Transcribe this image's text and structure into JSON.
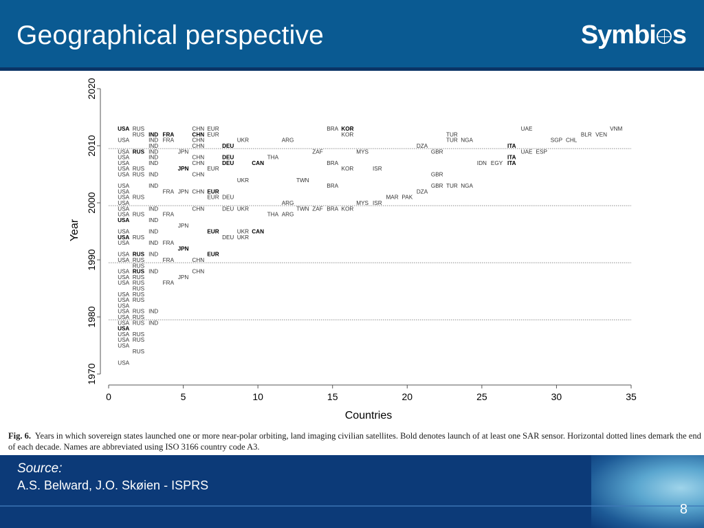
{
  "header": {
    "title": "Geographical perspective",
    "logo_part1": "Symbi",
    "logo_part2": "s"
  },
  "colors": {
    "header_bg": "#0a5a92",
    "footer_bg": "#0c3a78",
    "text": "#000000"
  },
  "chart_data": {
    "type": "scatter",
    "title": "",
    "xlabel": "Countries",
    "ylabel": "Year",
    "xlim": [
      0,
      35
    ],
    "ylim": [
      1970,
      2020
    ],
    "xticks": [
      0,
      5,
      10,
      15,
      20,
      25,
      30,
      35
    ],
    "yticks": [
      1970,
      1980,
      1990,
      2000,
      2010,
      2020
    ],
    "decade_lines": [
      1979.5,
      1989.5,
      1999.5,
      2009.5
    ],
    "grid": false,
    "points": [
      {
        "x": 1,
        "y": 1972,
        "label": "USA",
        "sar": false
      },
      {
        "x": 2,
        "y": 1974,
        "label": "RUS",
        "sar": false
      },
      {
        "x": 1,
        "y": 1975,
        "label": "USA",
        "sar": false
      },
      {
        "x": 1,
        "y": 1976,
        "label": "USA",
        "sar": false
      },
      {
        "x": 2,
        "y": 1976,
        "label": "RUS",
        "sar": false
      },
      {
        "x": 1,
        "y": 1977,
        "label": "USA",
        "sar": false
      },
      {
        "x": 2,
        "y": 1977,
        "label": "RUS",
        "sar": false
      },
      {
        "x": 1,
        "y": 1978,
        "label": "USA",
        "sar": true
      },
      {
        "x": 1,
        "y": 1979,
        "label": "USA",
        "sar": false
      },
      {
        "x": 2,
        "y": 1979,
        "label": "RUS",
        "sar": false
      },
      {
        "x": 3,
        "y": 1979,
        "label": "IND",
        "sar": false
      },
      {
        "x": 1,
        "y": 1980,
        "label": "USA",
        "sar": false
      },
      {
        "x": 2,
        "y": 1980,
        "label": "RUS",
        "sar": false
      },
      {
        "x": 1,
        "y": 1981,
        "label": "USA",
        "sar": false
      },
      {
        "x": 2,
        "y": 1981,
        "label": "RUS",
        "sar": false
      },
      {
        "x": 3,
        "y": 1981,
        "label": "IND",
        "sar": false
      },
      {
        "x": 1,
        "y": 1982,
        "label": "USA",
        "sar": false
      },
      {
        "x": 1,
        "y": 1983,
        "label": "USA",
        "sar": false
      },
      {
        "x": 2,
        "y": 1983,
        "label": "RUS",
        "sar": false
      },
      {
        "x": 1,
        "y": 1984,
        "label": "USA",
        "sar": false
      },
      {
        "x": 2,
        "y": 1984,
        "label": "RUS",
        "sar": false
      },
      {
        "x": 2,
        "y": 1985,
        "label": "RUS",
        "sar": false
      },
      {
        "x": 1,
        "y": 1986,
        "label": "USA",
        "sar": false
      },
      {
        "x": 2,
        "y": 1986,
        "label": "RUS",
        "sar": false
      },
      {
        "x": 4,
        "y": 1986,
        "label": "FRA",
        "sar": false
      },
      {
        "x": 1,
        "y": 1987,
        "label": "USA",
        "sar": false
      },
      {
        "x": 2,
        "y": 1987,
        "label": "RUS",
        "sar": false
      },
      {
        "x": 5,
        "y": 1987,
        "label": "JPN",
        "sar": false
      },
      {
        "x": 1,
        "y": 1988,
        "label": "USA",
        "sar": false
      },
      {
        "x": 2,
        "y": 1988,
        "label": "RUS",
        "sar": true
      },
      {
        "x": 3,
        "y": 1988,
        "label": "IND",
        "sar": false
      },
      {
        "x": 6,
        "y": 1988,
        "label": "CHN",
        "sar": false
      },
      {
        "x": 2,
        "y": 1989,
        "label": "RUS",
        "sar": false
      },
      {
        "x": 1,
        "y": 1990,
        "label": "USA",
        "sar": false
      },
      {
        "x": 2,
        "y": 1990,
        "label": "RUS",
        "sar": false
      },
      {
        "x": 4,
        "y": 1990,
        "label": "FRA",
        "sar": false
      },
      {
        "x": 6,
        "y": 1990,
        "label": "CHN",
        "sar": false
      },
      {
        "x": 1,
        "y": 1991,
        "label": "USA",
        "sar": false
      },
      {
        "x": 2,
        "y": 1991,
        "label": "RUS",
        "sar": true
      },
      {
        "x": 3,
        "y": 1991,
        "label": "IND",
        "sar": false
      },
      {
        "x": 7,
        "y": 1991,
        "label": "EUR",
        "sar": true
      },
      {
        "x": 5,
        "y": 1992,
        "label": "JPN",
        "sar": true
      },
      {
        "x": 1,
        "y": 1993,
        "label": "USA",
        "sar": false
      },
      {
        "x": 3,
        "y": 1993,
        "label": "IND",
        "sar": false
      },
      {
        "x": 4,
        "y": 1993,
        "label": "FRA",
        "sar": false
      },
      {
        "x": 1,
        "y": 1994,
        "label": "USA",
        "sar": true
      },
      {
        "x": 2,
        "y": 1994,
        "label": "RUS",
        "sar": false
      },
      {
        "x": 8,
        "y": 1994,
        "label": "DEU",
        "sar": false
      },
      {
        "x": 9,
        "y": 1994,
        "label": "UKR",
        "sar": false
      },
      {
        "x": 1,
        "y": 1995,
        "label": "USA",
        "sar": false
      },
      {
        "x": 3,
        "y": 1995,
        "label": "IND",
        "sar": false
      },
      {
        "x": 7,
        "y": 1995,
        "label": "EUR",
        "sar": true
      },
      {
        "x": 9,
        "y": 1995,
        "label": "UKR",
        "sar": false
      },
      {
        "x": 10,
        "y": 1995,
        "label": "CAN",
        "sar": true
      },
      {
        "x": 5,
        "y": 1996,
        "label": "JPN",
        "sar": false
      },
      {
        "x": 1,
        "y": 1997,
        "label": "USA",
        "sar": true
      },
      {
        "x": 3,
        "y": 1997,
        "label": "IND",
        "sar": false
      },
      {
        "x": 1,
        "y": 1998,
        "label": "USA",
        "sar": false
      },
      {
        "x": 2,
        "y": 1998,
        "label": "RUS",
        "sar": false
      },
      {
        "x": 4,
        "y": 1998,
        "label": "FRA",
        "sar": false
      },
      {
        "x": 11,
        "y": 1998,
        "label": "THA",
        "sar": false
      },
      {
        "x": 12,
        "y": 1998,
        "label": "ARG",
        "sar": false
      },
      {
        "x": 1,
        "y": 1999,
        "label": "USA",
        "sar": false
      },
      {
        "x": 3,
        "y": 1999,
        "label": "IND",
        "sar": false
      },
      {
        "x": 6,
        "y": 1999,
        "label": "CHN",
        "sar": false
      },
      {
        "x": 8,
        "y": 1999,
        "label": "DEU",
        "sar": false
      },
      {
        "x": 9,
        "y": 1999,
        "label": "UKR",
        "sar": false
      },
      {
        "x": 13,
        "y": 1999,
        "label": "TWN",
        "sar": false
      },
      {
        "x": 14,
        "y": 1999,
        "label": "ZAF",
        "sar": false
      },
      {
        "x": 15,
        "y": 1999,
        "label": "BRA",
        "sar": false
      },
      {
        "x": 16,
        "y": 1999,
        "label": "KOR",
        "sar": false
      },
      {
        "x": 1,
        "y": 2000,
        "label": "USA",
        "sar": false
      },
      {
        "x": 12,
        "y": 2000,
        "label": "ARG",
        "sar": false
      },
      {
        "x": 17,
        "y": 2000,
        "label": "MYS",
        "sar": false
      },
      {
        "x": 18,
        "y": 2000,
        "label": "ISR",
        "sar": false
      },
      {
        "x": 1,
        "y": 2001,
        "label": "USA",
        "sar": false
      },
      {
        "x": 2,
        "y": 2001,
        "label": "RUS",
        "sar": false
      },
      {
        "x": 7,
        "y": 2001,
        "label": "EUR",
        "sar": false
      },
      {
        "x": 8,
        "y": 2001,
        "label": "DEU",
        "sar": false
      },
      {
        "x": 19,
        "y": 2001,
        "label": "MAR",
        "sar": false
      },
      {
        "x": 20,
        "y": 2001,
        "label": "PAK",
        "sar": false
      },
      {
        "x": 1,
        "y": 2002,
        "label": "USA",
        "sar": false
      },
      {
        "x": 4,
        "y": 2002,
        "label": "FRA",
        "sar": false
      },
      {
        "x": 5,
        "y": 2002,
        "label": "JPN",
        "sar": false
      },
      {
        "x": 6,
        "y": 2002,
        "label": "CHN",
        "sar": false
      },
      {
        "x": 7,
        "y": 2002,
        "label": "EUR",
        "sar": true
      },
      {
        "x": 21,
        "y": 2002,
        "label": "DZA",
        "sar": false
      },
      {
        "x": 1,
        "y": 2003,
        "label": "USA",
        "sar": false
      },
      {
        "x": 3,
        "y": 2003,
        "label": "IND",
        "sar": false
      },
      {
        "x": 15,
        "y": 2003,
        "label": "BRA",
        "sar": false
      },
      {
        "x": 22,
        "y": 2003,
        "label": "GBR",
        "sar": false
      },
      {
        "x": 23,
        "y": 2003,
        "label": "TUR",
        "sar": false
      },
      {
        "x": 24,
        "y": 2003,
        "label": "NGA",
        "sar": false
      },
      {
        "x": 9,
        "y": 2004,
        "label": "UKR",
        "sar": false
      },
      {
        "x": 13,
        "y": 2004,
        "label": "TWN",
        "sar": false
      },
      {
        "x": 1,
        "y": 2005,
        "label": "USA",
        "sar": false
      },
      {
        "x": 2,
        "y": 2005,
        "label": "RUS",
        "sar": false
      },
      {
        "x": 3,
        "y": 2005,
        "label": "IND",
        "sar": false
      },
      {
        "x": 6,
        "y": 2005,
        "label": "CHN",
        "sar": false
      },
      {
        "x": 22,
        "y": 2005,
        "label": "GBR",
        "sar": false
      },
      {
        "x": 1,
        "y": 2006,
        "label": "USA",
        "sar": false
      },
      {
        "x": 2,
        "y": 2006,
        "label": "RUS",
        "sar": false
      },
      {
        "x": 5,
        "y": 2006,
        "label": "JPN",
        "sar": true
      },
      {
        "x": 7,
        "y": 2006,
        "label": "EUR",
        "sar": false
      },
      {
        "x": 16,
        "y": 2006,
        "label": "KOR",
        "sar": false
      },
      {
        "x": 18,
        "y": 2006,
        "label": "ISR",
        "sar": false
      },
      {
        "x": 1,
        "y": 2007,
        "label": "USA",
        "sar": false
      },
      {
        "x": 3,
        "y": 2007,
        "label": "IND",
        "sar": false
      },
      {
        "x": 6,
        "y": 2007,
        "label": "CHN",
        "sar": false
      },
      {
        "x": 8,
        "y": 2007,
        "label": "DEU",
        "sar": true
      },
      {
        "x": 10,
        "y": 2007,
        "label": "CAN",
        "sar": true
      },
      {
        "x": 15,
        "y": 2007,
        "label": "BRA",
        "sar": false
      },
      {
        "x": 25,
        "y": 2007,
        "label": "IDN",
        "sar": false
      },
      {
        "x": 26,
        "y": 2007,
        "label": "EGY",
        "sar": false
      },
      {
        "x": 27,
        "y": 2007,
        "label": "ITA",
        "sar": true
      },
      {
        "x": 1,
        "y": 2008,
        "label": "USA",
        "sar": false
      },
      {
        "x": 3,
        "y": 2008,
        "label": "IND",
        "sar": false
      },
      {
        "x": 6,
        "y": 2008,
        "label": "CHN",
        "sar": false
      },
      {
        "x": 8,
        "y": 2008,
        "label": "DEU",
        "sar": true
      },
      {
        "x": 11,
        "y": 2008,
        "label": "THA",
        "sar": false
      },
      {
        "x": 27,
        "y": 2008,
        "label": "ITA",
        "sar": true
      },
      {
        "x": 1,
        "y": 2009,
        "label": "USA",
        "sar": false
      },
      {
        "x": 2,
        "y": 2009,
        "label": "RUS",
        "sar": true
      },
      {
        "x": 3,
        "y": 2009,
        "label": "IND",
        "sar": false
      },
      {
        "x": 5,
        "y": 2009,
        "label": "JPN",
        "sar": false
      },
      {
        "x": 14,
        "y": 2009,
        "label": "ZAF",
        "sar": false
      },
      {
        "x": 17,
        "y": 2009,
        "label": "MYS",
        "sar": false
      },
      {
        "x": 22,
        "y": 2009,
        "label": "GBR",
        "sar": false
      },
      {
        "x": 28,
        "y": 2009,
        "label": "UAE",
        "sar": false
      },
      {
        "x": 29,
        "y": 2009,
        "label": "ESP",
        "sar": false
      },
      {
        "x": 3,
        "y": 2010,
        "label": "IND",
        "sar": false
      },
      {
        "x": 6,
        "y": 2010,
        "label": "CHN",
        "sar": false
      },
      {
        "x": 8,
        "y": 2010,
        "label": "DEU",
        "sar": true
      },
      {
        "x": 21,
        "y": 2010,
        "label": "DZA",
        "sar": false
      },
      {
        "x": 27,
        "y": 2010,
        "label": "ITA",
        "sar": true
      },
      {
        "x": 1,
        "y": 2011,
        "label": "USA",
        "sar": false
      },
      {
        "x": 3,
        "y": 2011,
        "label": "IND",
        "sar": false
      },
      {
        "x": 4,
        "y": 2011,
        "label": "FRA",
        "sar": false
      },
      {
        "x": 6,
        "y": 2011,
        "label": "CHN",
        "sar": false
      },
      {
        "x": 9,
        "y": 2011,
        "label": "UKR",
        "sar": false
      },
      {
        "x": 12,
        "y": 2011,
        "label": "ARG",
        "sar": false
      },
      {
        "x": 23,
        "y": 2011,
        "label": "TUR",
        "sar": false
      },
      {
        "x": 24,
        "y": 2011,
        "label": "NGA",
        "sar": false
      },
      {
        "x": 30,
        "y": 2011,
        "label": "SGP",
        "sar": false
      },
      {
        "x": 31,
        "y": 2011,
        "label": "CHL",
        "sar": false
      },
      {
        "x": 2,
        "y": 2012,
        "label": "RUS",
        "sar": false
      },
      {
        "x": 3,
        "y": 2012,
        "label": "IND",
        "sar": true
      },
      {
        "x": 4,
        "y": 2012,
        "label": "FRA",
        "sar": true
      },
      {
        "x": 6,
        "y": 2012,
        "label": "CHN",
        "sar": true
      },
      {
        "x": 7,
        "y": 2012,
        "label": "EUR",
        "sar": false
      },
      {
        "x": 16,
        "y": 2012,
        "label": "KOR",
        "sar": false
      },
      {
        "x": 23,
        "y": 2012,
        "label": "TUR",
        "sar": false
      },
      {
        "x": 32,
        "y": 2012,
        "label": "BLR",
        "sar": false
      },
      {
        "x": 33,
        "y": 2012,
        "label": "VEN",
        "sar": false
      },
      {
        "x": 1,
        "y": 2013,
        "label": "USA",
        "sar": true
      },
      {
        "x": 2,
        "y": 2013,
        "label": "RUS",
        "sar": false
      },
      {
        "x": 6,
        "y": 2013,
        "label": "CHN",
        "sar": false
      },
      {
        "x": 7,
        "y": 2013,
        "label": "EUR",
        "sar": false
      },
      {
        "x": 15,
        "y": 2013,
        "label": "BRA",
        "sar": false
      },
      {
        "x": 16,
        "y": 2013,
        "label": "KOR",
        "sar": true
      },
      {
        "x": 28,
        "y": 2013,
        "label": "UAE",
        "sar": false
      },
      {
        "x": 34,
        "y": 2013,
        "label": "VNM",
        "sar": false
      }
    ]
  },
  "caption": {
    "fig_label": "Fig. 6.",
    "text": "Years in which sovereign states launched one or more near-polar orbiting, land imaging civilian satellites. Bold denotes launch of at least one SAR sensor. Horizontal dotted lines demark the end of each decade. Names are abbreviated using ISO 3166 country code A3."
  },
  "footer": {
    "source_label": "Source:",
    "source_text": "A.S. Belward, J.O. Skøien - ISPRS",
    "page_number": "8"
  }
}
